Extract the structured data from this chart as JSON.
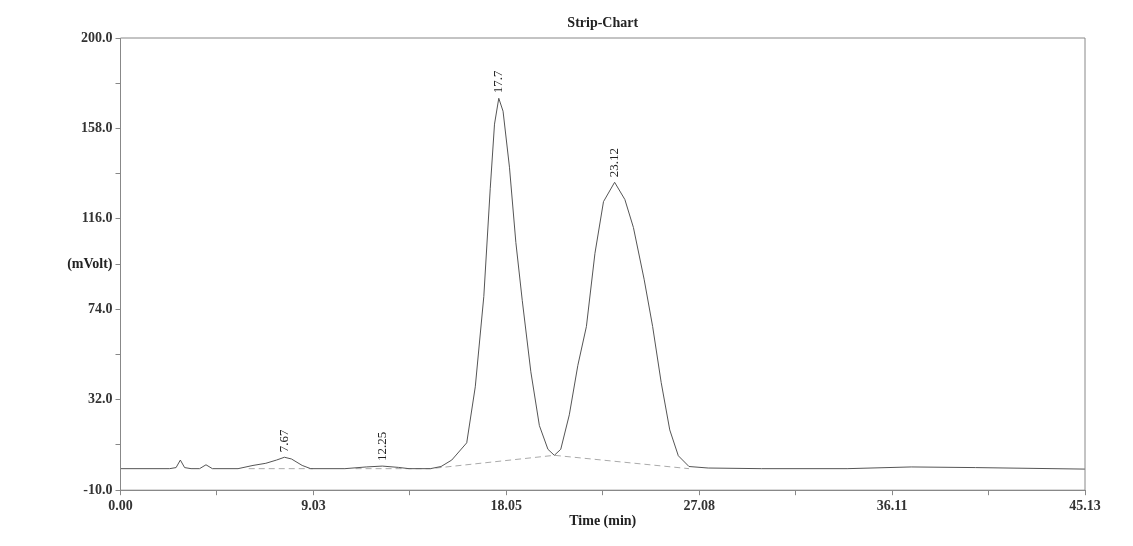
{
  "chart_data": {
    "type": "line",
    "title": "Strip-Chart",
    "xlabel": "Time (min)",
    "ylabel": "(mVolt)",
    "xlim": [
      0,
      45.13
    ],
    "ylim": [
      -10,
      200
    ],
    "xticks": [
      {
        "value": 0,
        "label": "0.00"
      },
      {
        "value": 4.515,
        "label": null
      },
      9.03,
      {
        "value": 13.54,
        "label": null
      },
      18.05,
      {
        "value": 22.565,
        "label": null
      },
      27.08,
      {
        "value": 31.595,
        "label": null
      },
      36.11,
      {
        "value": 40.62,
        "label": null
      },
      45.13
    ],
    "yticks": [
      {
        "value": -10,
        "label": "-10.0"
      },
      {
        "value": 11,
        "label": null
      },
      {
        "value": 32,
        "label": "32.0"
      },
      {
        "value": 53,
        "label": null
      },
      {
        "value": 74,
        "label": "74.0"
      },
      {
        "value": 95,
        "label": null
      },
      {
        "value": 116,
        "label": "116.0"
      },
      {
        "value": 137,
        "label": null
      },
      {
        "value": 158,
        "label": "158.0"
      },
      {
        "value": 179,
        "label": null
      },
      {
        "value": 200,
        "label": "200.0"
      }
    ],
    "grid": false,
    "marker": "none",
    "series": [
      {
        "color": "#555555",
        "line_style": "solid",
        "x": [
          0,
          2.3,
          2.6,
          2.8,
          3.0,
          3.3,
          3.7,
          4.0,
          4.3,
          5.5,
          6.2,
          6.8,
          7.3,
          7.67,
          8.0,
          8.5,
          8.9,
          10.5,
          11.5,
          12.25,
          13.0,
          13.5,
          14.5,
          15.0,
          15.5,
          16.2,
          16.6,
          17.0,
          17.3,
          17.5,
          17.7,
          17.9,
          18.2,
          18.5,
          18.8,
          19.2,
          19.6,
          20.0,
          20.3,
          20.6,
          21.0,
          21.4,
          21.8,
          22.2,
          22.6,
          23.12,
          23.6,
          24.0,
          24.5,
          24.9,
          25.3,
          25.7,
          26.1,
          26.6,
          27.5,
          30,
          34,
          37,
          40,
          45.13
        ],
        "values": [
          0,
          0,
          0.5,
          4,
          0.5,
          0,
          0,
          1.8,
          0,
          0,
          1.5,
          2.5,
          4,
          5.3,
          4.5,
          1.5,
          0,
          0,
          0.8,
          1.2,
          0.6,
          0,
          0,
          1,
          4,
          12,
          38,
          80,
          130,
          160,
          172,
          166,
          140,
          105,
          78,
          45,
          20,
          9,
          6.2,
          9,
          25,
          48,
          66,
          100,
          124,
          133,
          125,
          112,
          88,
          66,
          40,
          18,
          6,
          1,
          0.3,
          0,
          0,
          0.8,
          0.5,
          -0.2
        ]
      },
      {
        "color": "#aaaaaa",
        "line_style": "dashed",
        "x": [
          6.0,
          9.0,
          10.0,
          11.0,
          14.5,
          20.3,
          26.6
        ],
        "values": [
          0,
          0,
          null,
          0,
          0,
          6.2,
          0
        ]
      }
    ],
    "annotations": [
      {
        "text": "7.67",
        "x": 7.67,
        "y": 5.3
      },
      {
        "text": "12.25",
        "x": 12.25,
        "y": 1.2
      },
      {
        "text": "17.7",
        "x": 17.7,
        "y": 172
      },
      {
        "text": "23.12",
        "x": 23.12,
        "y": 133
      }
    ]
  }
}
